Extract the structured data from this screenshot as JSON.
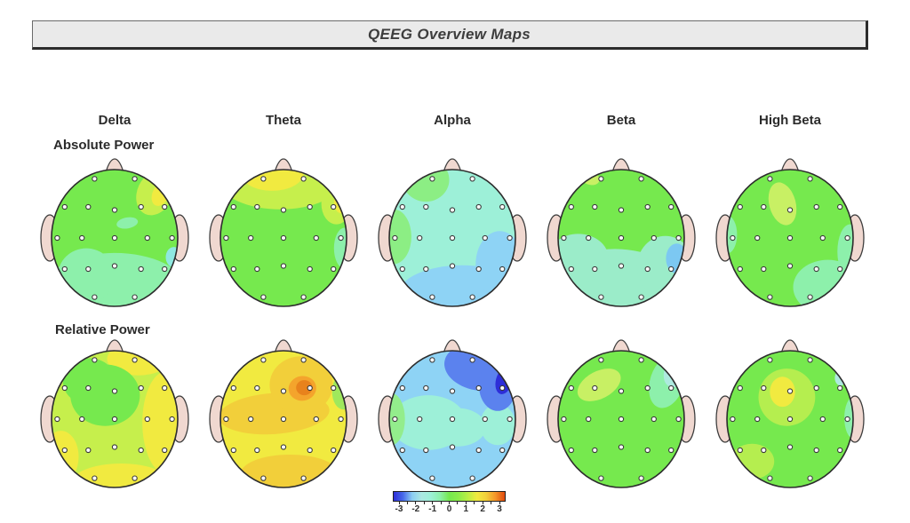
{
  "title_bar": {
    "title": "QEEG Overview Maps"
  },
  "chart_data": {
    "type": "heatmap",
    "subtype": "qeeg-topographic-scalp-maps",
    "title": "QEEG Overview Maps",
    "column_labels": [
      "Delta",
      "Theta",
      "Alpha",
      "Beta",
      "High Beta"
    ],
    "row_labels": [
      "Absolute Power",
      "Relative Power"
    ],
    "legend_position": "bottom-center",
    "colorbar": {
      "min": -3,
      "max": 3,
      "minor_tick_step": 0.5,
      "tick_labels": [
        "-3",
        "-2",
        "-1",
        "0",
        "1",
        "2",
        "3"
      ],
      "gradient": [
        "#2e2ed8",
        "#4769ea",
        "#8ccdf3",
        "#abe8e2",
        "#9df0d8",
        "#8df0ab",
        "#76e94e",
        "#8cec4a",
        "#b9ee45",
        "#f1ea40",
        "#f2cf3a",
        "#f4952a",
        "#e04a0e"
      ]
    },
    "palette": {
      "skin": "#f0d8d0",
      "green": "#76e94e",
      "green2": "#8cee84",
      "green3": "#9fe85c",
      "green4": "#93ed8c",
      "mint": "#8df0ab",
      "aqua": "#9df0d8",
      "aqua2": "#9becc9",
      "cyan": "#8fe8e0",
      "cyan2": "#aeeadf",
      "skyblue": "#8ed3f5",
      "skyblue2": "#7cc8f2",
      "blue": "#5b82ee",
      "navy": "#2e2ed8",
      "yellowgreen": "#c6ef4c",
      "yellowgreen2": "#b5ee4f",
      "paleyellow": "#c8f064",
      "yellow": "#f1ea40",
      "gold": "#f2cf3a",
      "orange": "#f4a42c",
      "darkorange": "#e8821c"
    },
    "electrodes": [
      [
        "Fp1",
        -0.35,
        -0.95
      ],
      [
        "Fp2",
        0.35,
        -0.95
      ],
      [
        "F7",
        -0.87,
        -0.5
      ],
      [
        "F3",
        -0.46,
        -0.5
      ],
      [
        "Fz",
        0,
        -0.45
      ],
      [
        "F4",
        0.46,
        -0.5
      ],
      [
        "F8",
        0.87,
        -0.5
      ],
      [
        "T3",
        -1,
        0
      ],
      [
        "C3",
        -0.57,
        0
      ],
      [
        "Cz",
        0,
        0
      ],
      [
        "C4",
        0.57,
        0
      ],
      [
        "T4",
        1,
        0
      ],
      [
        "T5",
        -0.87,
        0.5
      ],
      [
        "P3",
        -0.46,
        0.5
      ],
      [
        "Pz",
        0,
        0.45
      ],
      [
        "P4",
        0.46,
        0.5
      ],
      [
        "T6",
        0.87,
        0.5
      ],
      [
        "O1",
        -0.35,
        0.95
      ],
      [
        "O2",
        0.35,
        0.95
      ]
    ],
    "maps": [
      {
        "id": "absolute-delta",
        "row": "Absolute Power",
        "band": "Delta",
        "base": "green",
        "base_z": 0,
        "blobs": [
          {
            "color": "mint",
            "z": -0.5,
            "x": 0,
            "y": 0.72,
            "rx": 1.1,
            "ry": 0.5
          },
          {
            "color": "mint",
            "z": -0.5,
            "x": -0.45,
            "y": 0.55,
            "rx": 0.45,
            "ry": 0.4
          },
          {
            "color": "yellowgreen",
            "z": 1,
            "x": 0.64,
            "y": -0.66,
            "rx": 0.28,
            "ry": 0.34,
            "rot": 25
          },
          {
            "color": "yellow",
            "z": 1.5,
            "x": 0.73,
            "y": -0.64,
            "rx": 0.13,
            "ry": 0.18,
            "rot": 25
          },
          {
            "color": "mint",
            "z": -0.5,
            "x": 0.2,
            "y": -0.22,
            "rx": 0.17,
            "ry": 0.08,
            "rot": -10
          },
          {
            "color": "cyan",
            "z": -1,
            "x": 0.94,
            "y": 0.28,
            "rx": 0.13,
            "ry": 0.15
          }
        ]
      },
      {
        "id": "absolute-theta",
        "row": "Absolute Power",
        "band": "Theta",
        "base": "green",
        "base_z": 0,
        "blobs": [
          {
            "color": "yellowgreen",
            "z": 1,
            "x": -0.05,
            "y": -0.82,
            "rx": 0.95,
            "ry": 0.4
          },
          {
            "color": "yellow",
            "z": 1.5,
            "x": -0.18,
            "y": -0.95,
            "rx": 0.5,
            "ry": 0.26
          },
          {
            "color": "yellowgreen",
            "z": 1,
            "x": 0.84,
            "y": -0.5,
            "rx": 0.24,
            "ry": 0.3
          },
          {
            "color": "yellow",
            "z": 1.5,
            "x": 0.92,
            "y": -0.52,
            "rx": 0.12,
            "ry": 0.16
          },
          {
            "color": "mint",
            "z": -0.5,
            "x": 0.97,
            "y": 0.15,
            "rx": 0.17,
            "ry": 0.3
          }
        ]
      },
      {
        "id": "absolute-alpha",
        "row": "Absolute Power",
        "band": "Alpha",
        "base": "aqua",
        "base_z": -1,
        "blobs": [
          {
            "color": "skyblue",
            "z": -1.8,
            "x": 0.15,
            "y": 0.82,
            "rx": 1.0,
            "ry": 0.42
          },
          {
            "color": "skyblue",
            "z": -1.8,
            "x": 0.75,
            "y": 0.38,
            "rx": 0.38,
            "ry": 0.48
          },
          {
            "color": "green2",
            "z": -0.2,
            "x": -0.42,
            "y": -0.85,
            "rx": 0.37,
            "ry": 0.32
          },
          {
            "color": "green2",
            "z": -0.2,
            "x": -0.93,
            "y": -0.02,
            "rx": 0.28,
            "ry": 0.4
          }
        ]
      },
      {
        "id": "absolute-beta",
        "row": "Absolute Power",
        "band": "Beta",
        "base": "green",
        "base_z": 0,
        "blobs": [
          {
            "color": "aqua2",
            "z": -0.8,
            "x": -0.1,
            "y": 0.78,
            "rx": 1.1,
            "ry": 0.62
          },
          {
            "color": "aqua2",
            "z": -0.8,
            "x": -0.68,
            "y": 0.3,
            "rx": 0.48,
            "ry": 0.36
          },
          {
            "color": "aqua2",
            "z": -0.8,
            "x": 0.7,
            "y": 0.42,
            "rx": 0.45,
            "ry": 0.45
          },
          {
            "color": "skyblue2",
            "z": -1.8,
            "x": 0.88,
            "y": 0.3,
            "rx": 0.17,
            "ry": 0.22
          },
          {
            "color": "paleyellow",
            "z": 0.8,
            "x": -0.5,
            "y": -0.88,
            "rx": 0.16,
            "ry": 0.1,
            "rot": 20
          }
        ]
      },
      {
        "id": "absolute-high-beta",
        "row": "Absolute Power",
        "band": "High Beta",
        "base": "green",
        "base_z": 0,
        "blobs": [
          {
            "color": "paleyellow",
            "z": 0.8,
            "x": -0.12,
            "y": -0.5,
            "rx": 0.21,
            "ry": 0.32,
            "rot": -15
          },
          {
            "color": "mint",
            "z": -0.5,
            "x": 0.6,
            "y": 0.72,
            "rx": 0.55,
            "ry": 0.4
          },
          {
            "color": "mint",
            "z": -0.5,
            "x": 0.95,
            "y": 0.2,
            "rx": 0.2,
            "ry": 0.4
          },
          {
            "color": "mint",
            "z": -0.5,
            "x": -1.0,
            "y": -0.05,
            "rx": 0.16,
            "ry": 0.28
          }
        ]
      },
      {
        "id": "relative-delta",
        "row": "Relative Power",
        "band": "Delta",
        "base": "yellowgreen",
        "base_z": 1,
        "blobs": [
          {
            "color": "yellow",
            "z": 1.5,
            "x": 0.82,
            "y": 0.05,
            "rx": 0.38,
            "ry": 0.75
          },
          {
            "color": "yellow",
            "z": 1.5,
            "x": 0.1,
            "y": 0.95,
            "rx": 0.8,
            "ry": 0.3
          },
          {
            "color": "yellow",
            "z": 1.5,
            "x": 0.38,
            "y": -0.88,
            "rx": 0.5,
            "ry": 0.24
          },
          {
            "color": "yellow",
            "z": 1.5,
            "x": -0.85,
            "y": 0.55,
            "rx": 0.28,
            "ry": 0.38
          },
          {
            "color": "green",
            "z": 0.3,
            "x": -0.15,
            "y": -0.35,
            "rx": 0.55,
            "ry": 0.45
          },
          {
            "color": "green",
            "z": 0.3,
            "x": -0.4,
            "y": -0.55,
            "rx": 0.42,
            "ry": 0.34
          }
        ]
      },
      {
        "id": "relative-theta",
        "row": "Relative Power",
        "band": "Theta",
        "base": "yellow",
        "base_z": 1.5,
        "blobs": [
          {
            "color": "gold",
            "z": 2,
            "x": -0.15,
            "y": -0.08,
            "rx": 0.88,
            "ry": 0.3,
            "rot": -4
          },
          {
            "color": "gold",
            "z": 2,
            "x": 0.28,
            "y": -0.5,
            "rx": 0.5,
            "ry": 0.42
          },
          {
            "color": "gold",
            "z": 2,
            "x": 0.1,
            "y": 0.8,
            "rx": 0.78,
            "ry": 0.28
          },
          {
            "color": "orange",
            "z": 2.5,
            "x": 0.3,
            "y": -0.45,
            "rx": 0.22,
            "ry": 0.18,
            "rot": -8
          },
          {
            "color": "darkorange",
            "z": 2.8,
            "x": 0.33,
            "y": -0.46,
            "rx": 0.13,
            "ry": 0.11
          },
          {
            "color": "green3",
            "z": 0.5,
            "x": 0.95,
            "y": -0.4,
            "rx": 0.18,
            "ry": 0.26
          }
        ]
      },
      {
        "id": "relative-alpha",
        "row": "Relative Power",
        "band": "Alpha",
        "base": "skyblue",
        "base_z": -1.8,
        "blobs": [
          {
            "color": "aqua",
            "z": -1,
            "x": -0.38,
            "y": 0.05,
            "rx": 0.6,
            "ry": 0.4
          },
          {
            "color": "aqua",
            "z": -1,
            "x": 0.08,
            "y": 0.12,
            "rx": 0.45,
            "ry": 0.28
          },
          {
            "color": "aqua",
            "z": -1,
            "x": 0.72,
            "y": 0.08,
            "rx": 0.28,
            "ry": 0.3
          },
          {
            "color": "green4",
            "z": -0.3,
            "x": -0.97,
            "y": 0,
            "rx": 0.22,
            "ry": 0.38
          },
          {
            "color": "blue",
            "z": -2.5,
            "x": 0.42,
            "y": -0.76,
            "rx": 0.55,
            "ry": 0.34,
            "rot": 10
          },
          {
            "color": "blue",
            "z": -2.5,
            "x": 0.72,
            "y": -0.5,
            "rx": 0.3,
            "ry": 0.38
          },
          {
            "color": "navy",
            "z": -3,
            "x": 0.82,
            "y": -0.56,
            "rx": 0.13,
            "ry": 0.2,
            "rot": 15
          }
        ]
      },
      {
        "id": "relative-beta",
        "row": "Relative Power",
        "band": "Beta",
        "base": "green",
        "base_z": 0,
        "blobs": [
          {
            "color": "paleyellow",
            "z": 0.8,
            "x": -0.35,
            "y": -0.5,
            "rx": 0.37,
            "ry": 0.2,
            "rot": -28
          },
          {
            "color": "mint",
            "z": -0.5,
            "x": 0.73,
            "y": -0.55,
            "rx": 0.27,
            "ry": 0.4,
            "rot": 18
          },
          {
            "color": "cyan2",
            "z": -0.8,
            "x": 0.85,
            "y": -0.68,
            "rx": 0.17,
            "ry": 0.22,
            "rot": 18
          }
        ]
      },
      {
        "id": "relative-high-beta",
        "row": "Relative Power",
        "band": "High Beta",
        "base": "green",
        "base_z": 0,
        "blobs": [
          {
            "color": "yellowgreen2",
            "z": 0.8,
            "x": -0.05,
            "y": -0.32,
            "rx": 0.45,
            "ry": 0.42
          },
          {
            "color": "yellow",
            "z": 1.5,
            "x": -0.12,
            "y": -0.4,
            "rx": 0.2,
            "ry": 0.22
          },
          {
            "color": "yellowgreen2",
            "z": 0.8,
            "x": -0.6,
            "y": 0.62,
            "rx": 0.35,
            "ry": 0.26
          },
          {
            "color": "mint",
            "z": -0.5,
            "x": 1.0,
            "y": -0.02,
            "rx": 0.14,
            "ry": 0.3
          },
          {
            "color": "cyan2",
            "z": -0.8,
            "x": 0.8,
            "y": -0.6,
            "rx": 0.09,
            "ry": 0.11
          }
        ]
      }
    ]
  }
}
